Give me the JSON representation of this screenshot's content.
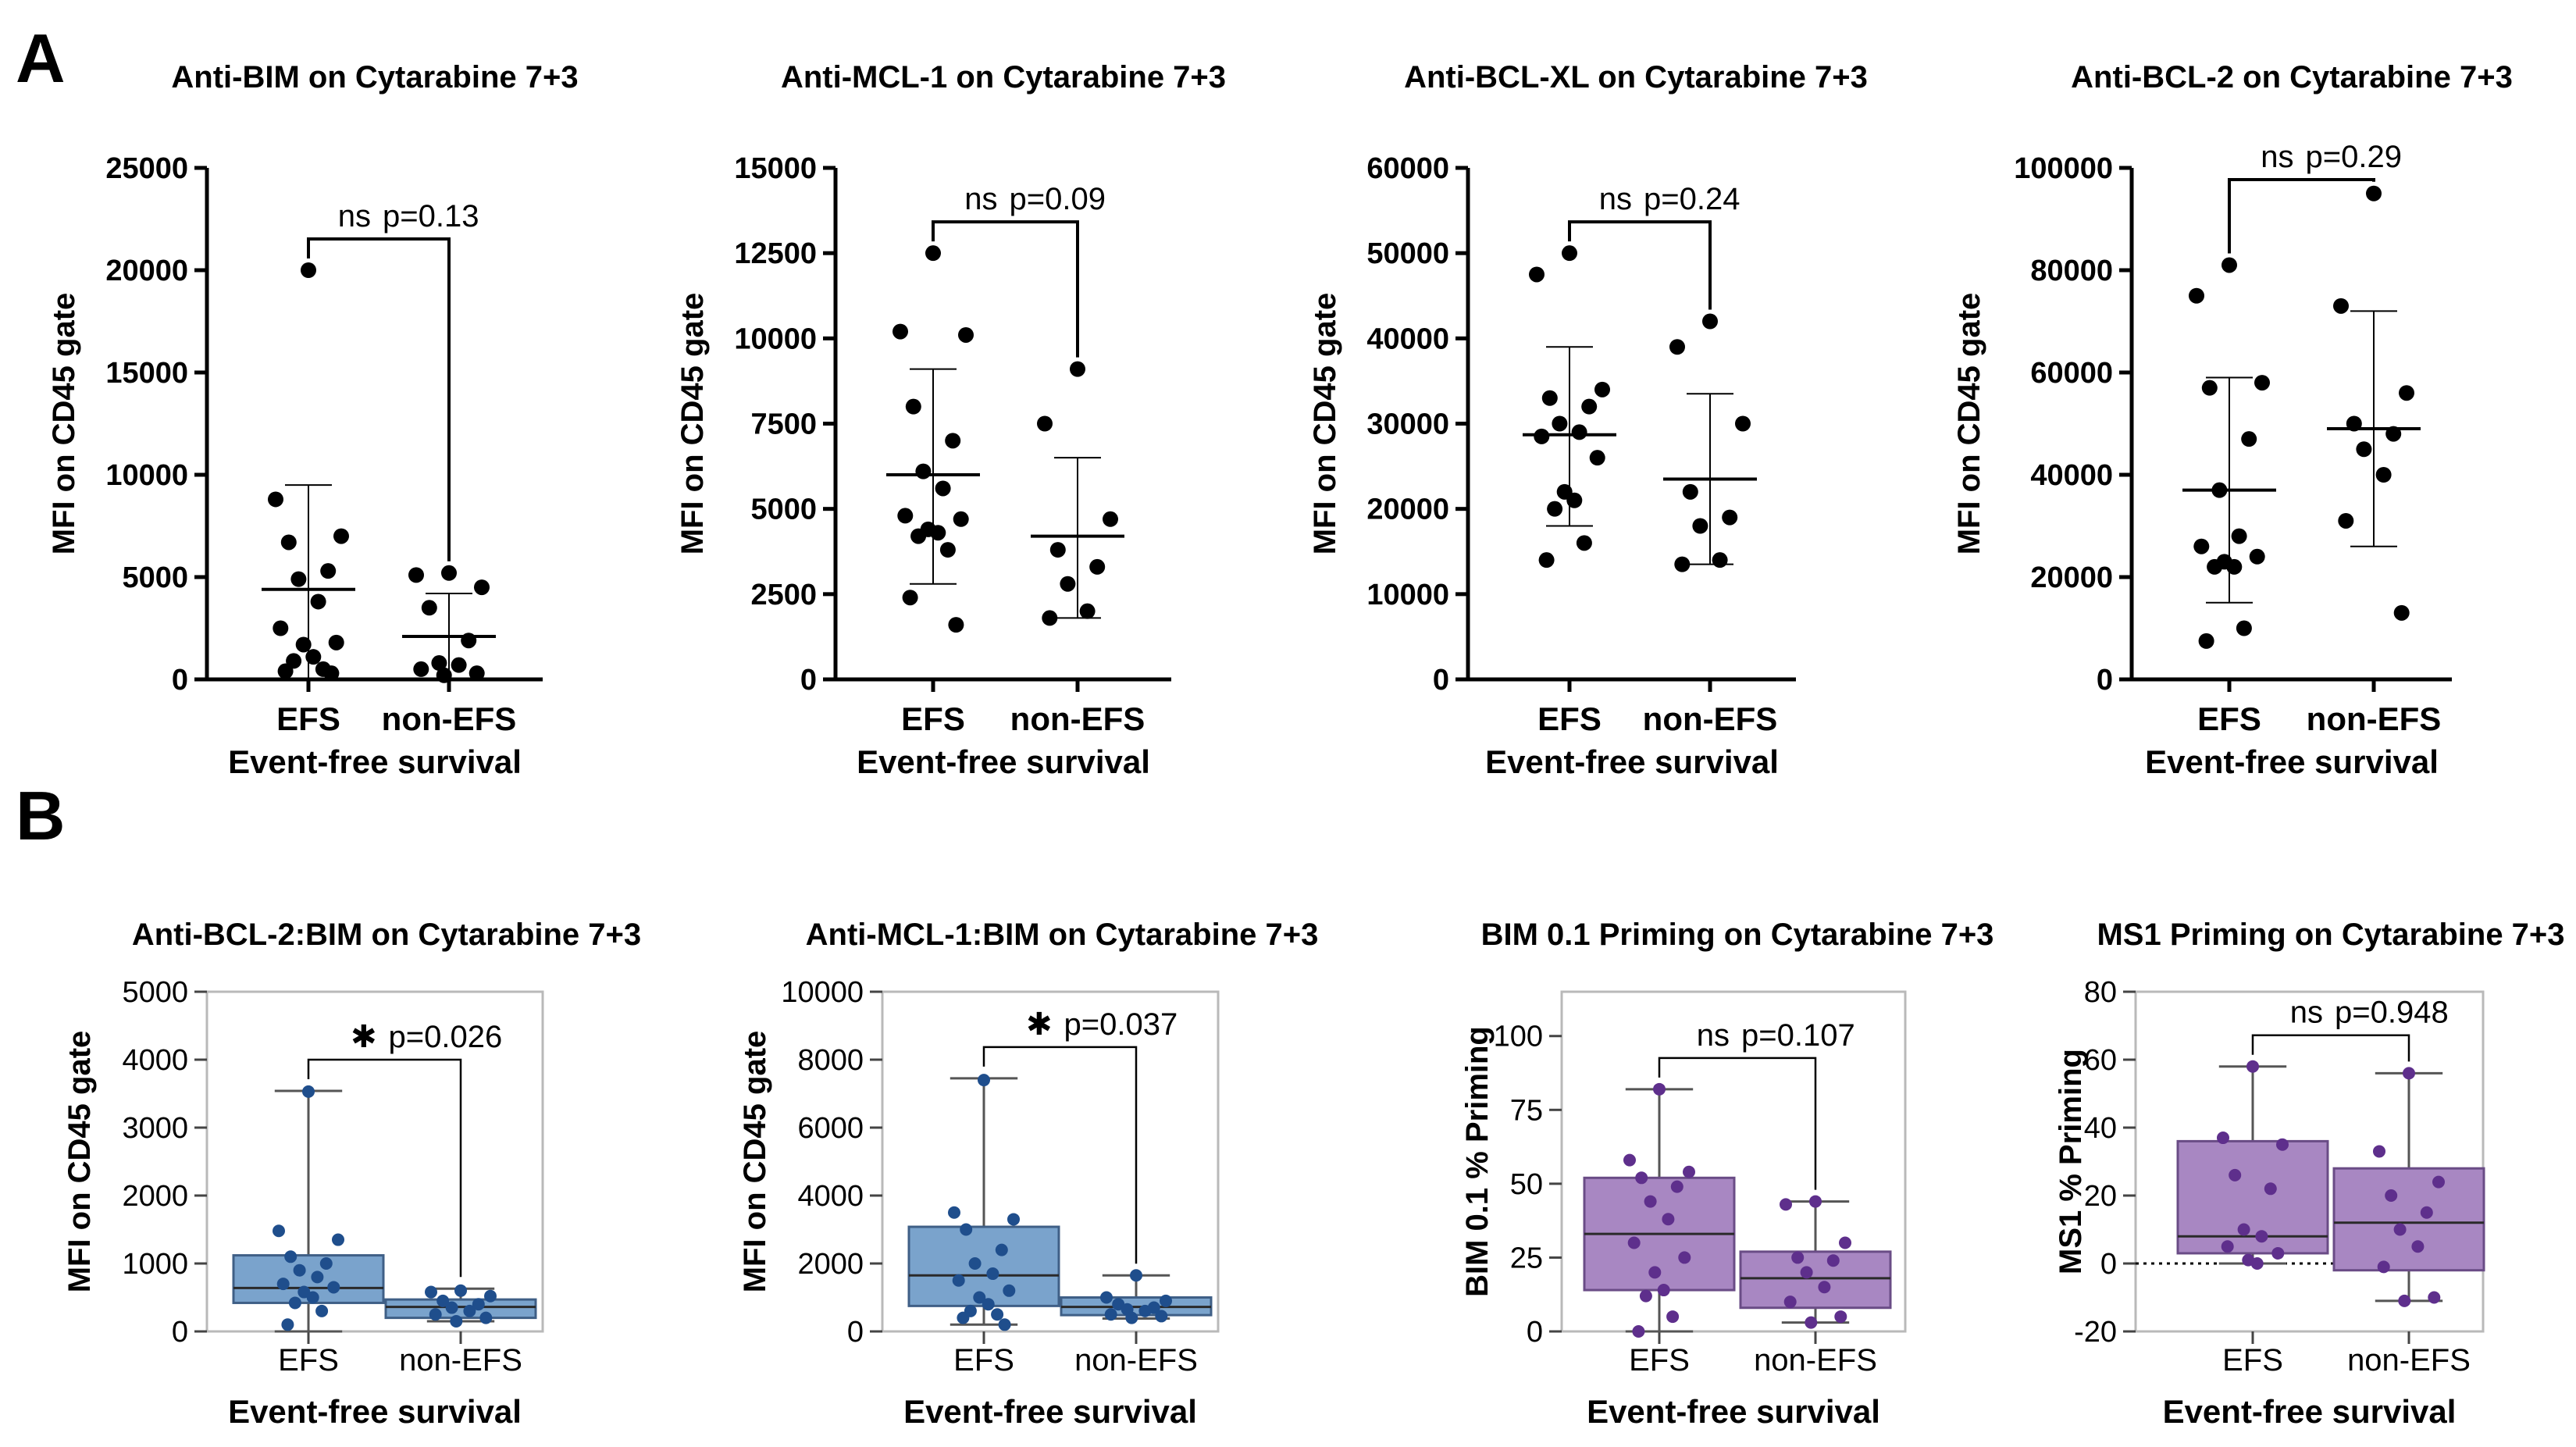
{
  "panel_labels": {
    "a": "A",
    "b": "B"
  },
  "chart_data": [
    {
      "type": "scatter",
      "style": "dot-mean-sd",
      "title": "Anti-BIM on Cytarabine 7+3",
      "xlabel": "Event-free survival",
      "ylabel": "MFI on CD45 gate",
      "categories": [
        "EFS",
        "non-EFS"
      ],
      "ylim": [
        0,
        25000
      ],
      "yticks": [
        0,
        5000,
        10000,
        15000,
        20000,
        25000
      ],
      "ytick_labels": [
        "0",
        "5000",
        "10000",
        "15000",
        "20000",
        "25000"
      ],
      "points": [
        [
          20000,
          8800,
          7000,
          6700,
          5300,
          4900,
          3800,
          2500,
          1800,
          1700,
          1100,
          900,
          500,
          400,
          300
        ],
        [
          5200,
          5100,
          4500,
          3500,
          1900,
          800,
          700,
          500,
          300,
          200
        ]
      ],
      "mean": [
        4400,
        2100
      ],
      "sd_low": [
        0,
        0
      ],
      "sd_high": [
        9500,
        4200
      ],
      "significance": {
        "mark": "ns",
        "p": "p=0.13"
      },
      "colors": {
        "points": "#000000"
      }
    },
    {
      "type": "scatter",
      "style": "dot-mean-sd",
      "title": "Anti-MCL-1 on Cytarabine 7+3",
      "xlabel": "Event-free survival",
      "ylabel": "MFI on CD45 gate",
      "categories": [
        "EFS",
        "non-EFS"
      ],
      "ylim": [
        0,
        15000
      ],
      "yticks": [
        0,
        2500,
        5000,
        7500,
        10000,
        12500,
        15000
      ],
      "ytick_labels": [
        "0",
        "2500",
        "5000",
        "7500",
        "10000",
        "12500",
        "15000"
      ],
      "points": [
        [
          12500,
          10200,
          10100,
          8000,
          7000,
          6100,
          5600,
          4800,
          4700,
          4400,
          4300,
          4200,
          3800,
          2400,
          1600
        ],
        [
          9100,
          7500,
          4700,
          3800,
          3300,
          2800,
          2000,
          1800
        ]
      ],
      "mean": [
        6000,
        4200
      ],
      "sd_low": [
        2800,
        1800
      ],
      "sd_high": [
        9100,
        6500
      ],
      "significance": {
        "mark": "ns",
        "p": "p=0.09"
      },
      "colors": {
        "points": "#000000"
      }
    },
    {
      "type": "scatter",
      "style": "dot-mean-sd",
      "title": "Anti-BCL-XL on Cytarabine 7+3",
      "xlabel": "Event-free survival",
      "ylabel": "MFI on CD45 gate",
      "categories": [
        "EFS",
        "non-EFS"
      ],
      "ylim": [
        0,
        60000
      ],
      "yticks": [
        0,
        10000,
        20000,
        30000,
        40000,
        50000,
        60000
      ],
      "ytick_labels": [
        "0",
        "10000",
        "20000",
        "30000",
        "40000",
        "50000",
        "60000"
      ],
      "points": [
        [
          50000,
          47500,
          34000,
          33000,
          32000,
          30000,
          29000,
          28500,
          26000,
          22000,
          21000,
          20000,
          16000,
          14000
        ],
        [
          42000,
          39000,
          30000,
          22000,
          19000,
          18000,
          14000,
          13500
        ]
      ],
      "mean": [
        28700,
        23500
      ],
      "sd_low": [
        18000,
        13500
      ],
      "sd_high": [
        39000,
        33500
      ],
      "significance": {
        "mark": "ns",
        "p": "p=0.24"
      },
      "colors": {
        "points": "#000000"
      }
    },
    {
      "type": "scatter",
      "style": "dot-mean-sd",
      "title": "Anti-BCL-2 on Cytarabine 7+3",
      "xlabel": "Event-free survival",
      "ylabel": "MFI on CD45 gate",
      "categories": [
        "EFS",
        "non-EFS"
      ],
      "ylim": [
        0,
        100000
      ],
      "yticks": [
        0,
        20000,
        40000,
        60000,
        80000,
        100000
      ],
      "ytick_labels": [
        "0",
        "20000",
        "40000",
        "60000",
        "80000",
        "100000"
      ],
      "points": [
        [
          81000,
          75000,
          58000,
          57000,
          47000,
          37000,
          28000,
          26000,
          24000,
          23000,
          22000,
          22000,
          10000,
          7500
        ],
        [
          95000,
          73000,
          56000,
          50000,
          48000,
          45000,
          40000,
          31000,
          13000
        ]
      ],
      "mean": [
        37000,
        49000
      ],
      "sd_low": [
        15000,
        26000
      ],
      "sd_high": [
        59000,
        72000
      ],
      "significance": {
        "mark": "ns",
        "p": "p=0.29"
      },
      "colors": {
        "points": "#000000"
      }
    },
    {
      "type": "box",
      "style": "box-whisker-points",
      "title": "Anti-BCL-2:BIM on Cytarabine 7+3",
      "xlabel": "Event-free survival",
      "ylabel": "MFI on CD45 gate",
      "categories": [
        "EFS",
        "non-EFS"
      ],
      "ylim": [
        0,
        5000
      ],
      "yticks": [
        0,
        1000,
        2000,
        3000,
        4000,
        5000
      ],
      "ytick_labels": [
        "0",
        "1000",
        "2000",
        "3000",
        "4000",
        "5000"
      ],
      "box": [
        {
          "min": 0,
          "q1": 420,
          "median": 640,
          "q3": 1120,
          "max": 3540
        },
        {
          "min": 150,
          "q1": 200,
          "median": 360,
          "q3": 470,
          "max": 630
        }
      ],
      "points": [
        [
          3530,
          1480,
          1350,
          1100,
          1000,
          900,
          800,
          700,
          650,
          580,
          500,
          420,
          300,
          100
        ],
        [
          600,
          580,
          520,
          450,
          400,
          350,
          300,
          250,
          200,
          150
        ]
      ],
      "significance": {
        "mark": "✱",
        "p": "p=0.026"
      },
      "colors": {
        "box_fill": "#7aa3cc",
        "box_edge": "#3f5f86",
        "points": "#1f4e8c"
      }
    },
    {
      "type": "box",
      "style": "box-whisker-points",
      "title": "Anti-MCL-1:BIM on Cytarabine 7+3",
      "xlabel": "Event-free survival",
      "ylabel": "MFI on CD45 gate",
      "categories": [
        "EFS",
        "non-EFS"
      ],
      "ylim": [
        0,
        10000
      ],
      "yticks": [
        0,
        2000,
        4000,
        6000,
        8000,
        10000
      ],
      "ytick_labels": [
        "0",
        "2000",
        "4000",
        "6000",
        "8000",
        "10000"
      ],
      "box": [
        {
          "min": 200,
          "q1": 750,
          "median": 1650,
          "q3": 3080,
          "max": 7450
        },
        {
          "min": 380,
          "q1": 480,
          "median": 720,
          "q3": 1000,
          "max": 1650
        }
      ],
      "points": [
        [
          7400,
          3500,
          3300,
          3000,
          2400,
          2000,
          1700,
          1500,
          1200,
          1000,
          800,
          600,
          500,
          400,
          200
        ],
        [
          1650,
          1000,
          900,
          800,
          700,
          650,
          600,
          500,
          450,
          400
        ]
      ],
      "significance": {
        "mark": "✱",
        "p": "p=0.037"
      },
      "colors": {
        "box_fill": "#7aa3cc",
        "box_edge": "#3f5f86",
        "points": "#1f4e8c"
      }
    },
    {
      "type": "box",
      "style": "box-whisker-points",
      "title": "BIM 0.1 Priming on Cytarabine 7+3",
      "xlabel": "Event-free survival",
      "ylabel": "BIM 0.1 % Priming",
      "categories": [
        "EFS",
        "non-EFS"
      ],
      "ylim": [
        0,
        115
      ],
      "yticks": [
        0,
        25,
        50,
        75,
        100
      ],
      "ytick_labels": [
        "0",
        "25",
        "50",
        "75",
        "100"
      ],
      "box": [
        {
          "min": 0,
          "q1": 14,
          "median": 33,
          "q3": 52,
          "max": 82
        },
        {
          "min": 3,
          "q1": 8,
          "median": 18,
          "q3": 27,
          "max": 44
        }
      ],
      "points": [
        [
          82,
          58,
          54,
          52,
          49,
          44,
          38,
          30,
          25,
          20,
          14,
          12,
          5,
          0
        ],
        [
          44,
          43,
          30,
          25,
          24,
          20,
          15,
          10,
          5,
          3
        ]
      ],
      "significance": {
        "mark": "ns",
        "p": "p=0.107"
      },
      "colors": {
        "box_fill": "#a887c2",
        "box_edge": "#6a4c86",
        "points": "#5e2f8c"
      }
    },
    {
      "type": "box",
      "style": "box-whisker-points",
      "title": "MS1 Priming on Cytarabine 7+3",
      "xlabel": "Event-free survival",
      "ylabel": "MS1 % Priming",
      "categories": [
        "EFS",
        "non-EFS"
      ],
      "ylim": [
        -20,
        80
      ],
      "yticks": [
        -20,
        0,
        20,
        40,
        60,
        80
      ],
      "ytick_labels": [
        "-20",
        "0",
        "20",
        "40",
        "60",
        "80"
      ],
      "reference_line": 0,
      "box": [
        {
          "min": 0,
          "q1": 3,
          "median": 8,
          "q3": 36,
          "max": 58
        },
        {
          "min": -11,
          "q1": -2,
          "median": 12,
          "q3": 28,
          "max": 56
        }
      ],
      "points": [
        [
          58,
          37,
          35,
          26,
          22,
          10,
          8,
          5,
          3,
          1,
          0
        ],
        [
          56,
          33,
          24,
          20,
          15,
          10,
          5,
          -1,
          -10,
          -11
        ]
      ],
      "significance": {
        "mark": "ns",
        "p": "p=0.948"
      },
      "colors": {
        "box_fill": "#a887c2",
        "box_edge": "#6a4c86",
        "points": "#5e2f8c"
      }
    }
  ]
}
